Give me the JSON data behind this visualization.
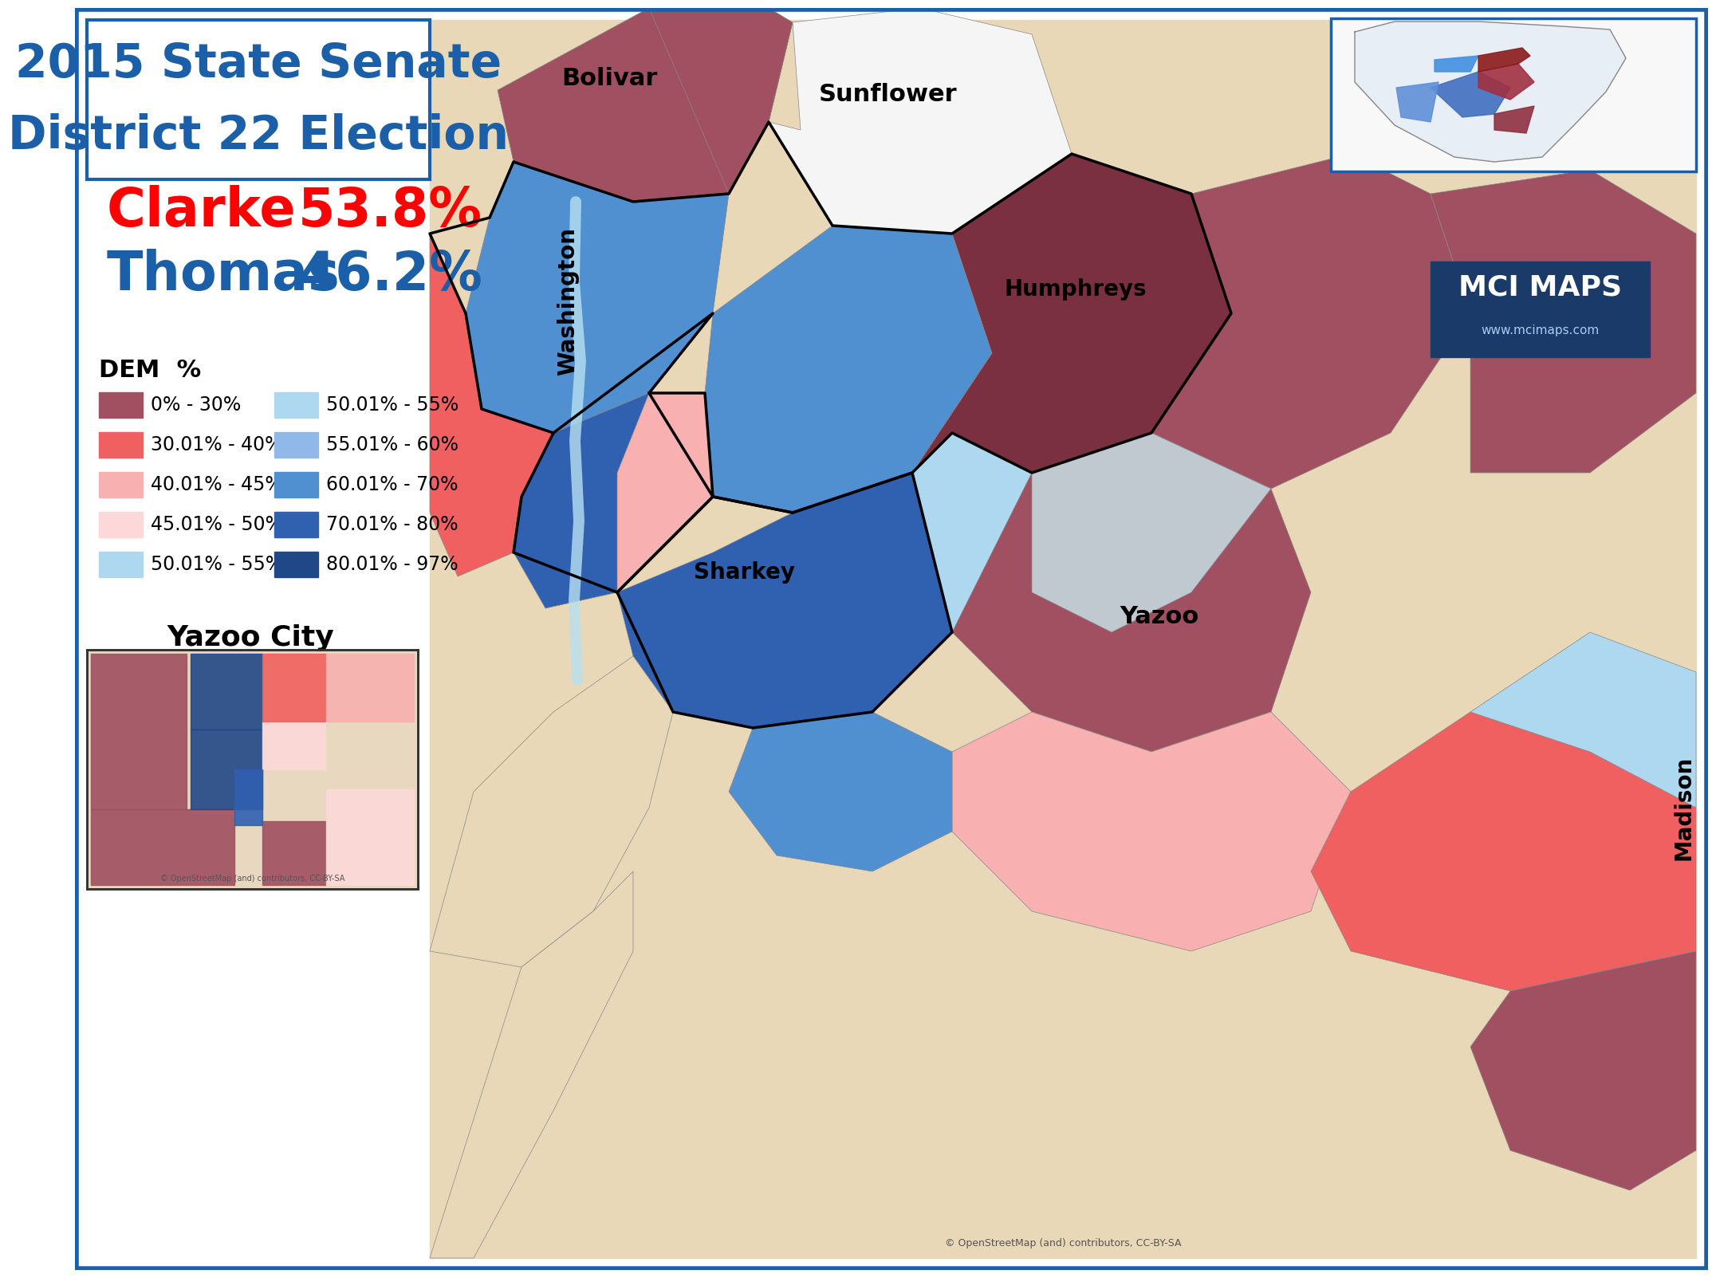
{
  "title_line1": "2015 State Senate",
  "title_line2": "District 22 Election",
  "title_color": "#1a5fa8",
  "title_bg": "#ffffff",
  "title_border": "#1a5fa8",
  "candidate1_name": "Clarke",
  "candidate1_pct": "53.8%",
  "candidate1_color": "#ff0000",
  "candidate2_name": "Thomas",
  "candidate2_pct": "46.2%",
  "candidate2_color": "#1a5fa8",
  "legend_title": "DEM  %",
  "legend_items": [
    {
      "color": "#a05060",
      "label": "0% - 30%"
    },
    {
      "color": "#f06060",
      "label": "30.01% - 40%"
    },
    {
      "color": "#f8b0b0",
      "label": "40.01% - 45%"
    },
    {
      "color": "#fdd8d8",
      "label": "45.01% - 50%"
    },
    {
      "color": "#add8f0",
      "label": "50.01% - 55%"
    },
    {
      "color": "#90b8e8",
      "label": "55.01% - 60%"
    },
    {
      "color": "#5090d0",
      "label": "60.01% - 70%"
    },
    {
      "color": "#3060b0",
      "label": "70.01% - 80%"
    },
    {
      "color": "#204888",
      "label": "80.01% - 97%"
    }
  ],
  "inset_label": "Yazoo City",
  "bg_color": "#ffffff",
  "map_bg": "#e8d8b8",
  "border_color": "#1a5fa8",
  "mci_maps_bg": "#1a3a6a",
  "mci_maps_text": "#ffffff"
}
